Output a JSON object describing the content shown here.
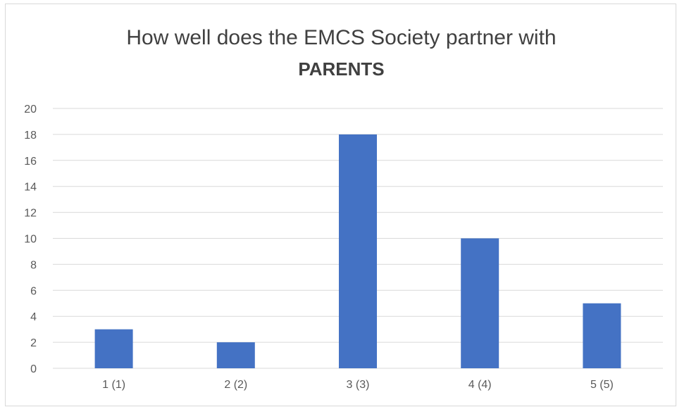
{
  "chart_data": {
    "type": "bar",
    "title_line_1": "How well does the EMCS Society partner with",
    "title_line_2": "PARENTS",
    "categories": [
      "1 (1)",
      "2 (2)",
      "3 (3)",
      "4 (4)",
      "5 (5)"
    ],
    "values": [
      3,
      2,
      18,
      10,
      5
    ],
    "ylim": [
      0,
      20
    ],
    "yticks": [
      0,
      2,
      4,
      6,
      8,
      10,
      12,
      14,
      16,
      18,
      20
    ],
    "grid": true,
    "legend": "none",
    "bar_color": "#4472c4",
    "grid_color": "#d9d9d9"
  }
}
